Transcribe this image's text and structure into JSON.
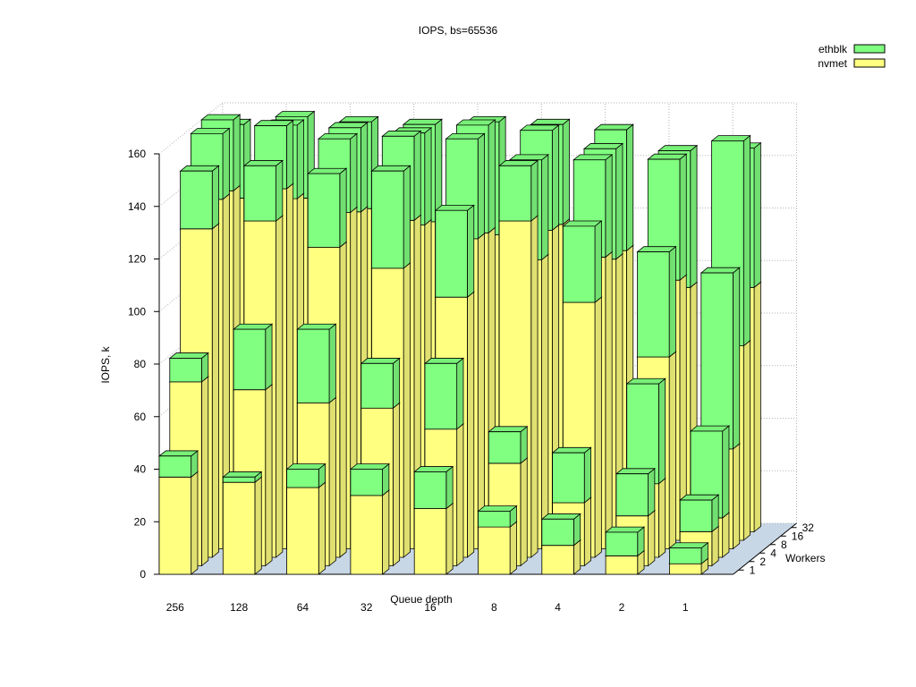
{
  "chart_data": {
    "type": "bar",
    "subtype": "3d-stacked",
    "title": "IOPS, bs=65536",
    "xlabel": "Queue depth",
    "ylabel": "IOPS, k",
    "zlabel": "Workers",
    "ylim": [
      0,
      160
    ],
    "yticks": [
      "0",
      "20",
      "40",
      "60",
      "80",
      "100",
      "120",
      "140",
      "160"
    ],
    "categories": [
      "256",
      "128",
      "64",
      "32",
      "16",
      "8",
      "4",
      "2",
      "1"
    ],
    "workers": [
      "1",
      "2",
      "4",
      "8",
      "16",
      "32"
    ],
    "grid": true,
    "legend_position": "top-right",
    "series": [
      {
        "name": "nvmet",
        "color": "#ffff80",
        "values": [
          [
            37,
            70,
            125,
            133,
            133,
            127
          ],
          [
            35,
            67,
            128,
            137,
            130,
            127
          ],
          [
            33,
            62,
            118,
            128,
            125,
            123
          ],
          [
            30,
            60,
            110,
            125,
            120,
            118
          ],
          [
            25,
            52,
            99,
            118,
            117,
            113
          ],
          [
            18,
            39,
            128,
            110,
            118,
            117
          ],
          [
            11,
            24,
            97,
            111,
            107,
            107
          ],
          [
            7,
            19,
            28,
            73,
            99,
            93
          ],
          [
            4,
            13,
            15,
            38,
            74,
            93
          ]
        ]
      },
      {
        "name": "ethblk",
        "color": "#80ff80",
        "values": [
          [
            8,
            9,
            22,
            25,
            27,
            28
          ],
          [
            2,
            23,
            21,
            24,
            28,
            31
          ],
          [
            7,
            28,
            28,
            28,
            32,
            33
          ],
          [
            10,
            17,
            37,
            32,
            35,
            37
          ],
          [
            14,
            25,
            33,
            38,
            41,
            43
          ],
          [
            6,
            12,
            21,
            38,
            38,
            38
          ],
          [
            10,
            19,
            29,
            37,
            42,
            46
          ],
          [
            9,
            16,
            38,
            40,
            46,
            52
          ],
          [
            6,
            12,
            33,
            67,
            78,
            53
          ]
        ]
      }
    ]
  }
}
